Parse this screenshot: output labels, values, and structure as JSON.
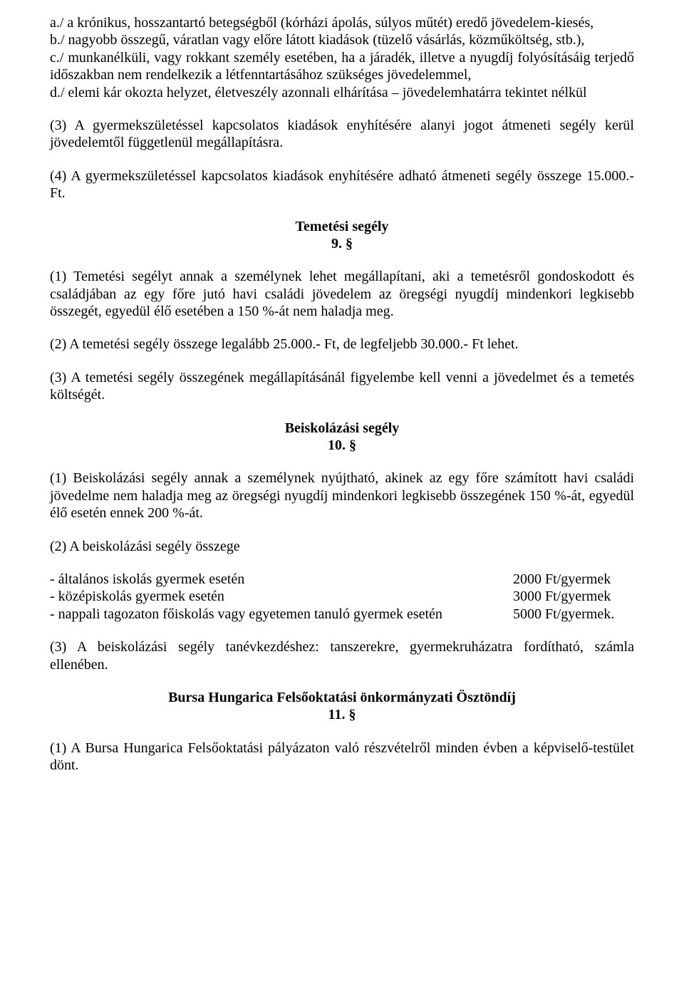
{
  "p_a": "a./ a krónikus, hosszantartó betegségből (kórházi ápolás, súlyos műtét) eredő jövedelem-kiesés,",
  "p_b": "b./ nagyobb összegű, váratlan vagy előre látott kiadások (tüzelő vásárlás, közműköltség, stb.),",
  "p_c": "c./ munkanélküli, vagy rokkant személy esetében, ha a járadék, illetve a nyugdíj folyósításáig terjedő időszakban nem rendelkezik a létfenntartásához szükséges jövedelemmel,",
  "p_d": "d./ elemi kár okozta helyzet, életveszély azonnali elhárítása – jövedelemhatárra tekintet nélkül",
  "p_3": "(3) A gyermekszületéssel kapcsolatos kiadások enyhítésére alanyi jogot átmeneti segély kerül jövedelemtől függetlenül megállapításra.",
  "p_4": "(4) A gyermekszületéssel kapcsolatos kiadások enyhítésére adható átmeneti segély összege 15.000.- Ft.",
  "h_temetesi": "Temetési segély",
  "s_9": "9. §",
  "p_9_1": "(1) Temetési segélyt annak a személynek lehet megállapítani, aki a temetésről gondoskodott és családjában az egy főre jutó havi családi jövedelem az öregségi nyugdíj mindenkori legkisebb összegét, egyedül élő esetében a 150 %-át nem haladja meg.",
  "p_9_2": "(2) A temetési segély összege legalább 25.000.- Ft, de legfeljebb 30.000.- Ft lehet.",
  "p_9_3": "(3) A temetési segély összegének megállapításánál figyelembe kell venni a jövedelmet és a temetés költségét.",
  "h_beiskolazasi": "Beiskolázási segély",
  "s_10": "10. §",
  "p_10_1": "(1) Beiskolázási segély annak a személynek nyújtható, akinek az egy főre számított havi családi jövedelme nem haladja meg az öregségi nyugdíj mindenkori legkisebb összegének 150 %-át, egyedül élő esetén ennek 200 %-át.",
  "p_10_2": "(2) A beiskolázási segély összege",
  "row1_label": "- általános iskolás gyermek esetén",
  "row1_amount": "2000 Ft/gyermek",
  "row2_label": "- középiskolás gyermek esetén",
  "row2_amount": "3000 Ft/gyermek",
  "row3_label": "- nappali tagozaton főiskolás vagy egyetemen tanuló gyermek esetén",
  "row3_amount": "5000 Ft/gyermek.",
  "p_10_3": "(3) A beiskolázási segély tanévkezdéshez: tanszerekre, gyermekruházatra fordítható, számla ellenében.",
  "h_bursa": "Bursa Hungarica Felsőoktatási önkormányzati Ösztöndíj",
  "s_11": "11. §",
  "p_11_1": "(1) A Bursa Hungarica Felsőoktatási pályázaton való részvételről minden évben a képviselő-testület dönt."
}
